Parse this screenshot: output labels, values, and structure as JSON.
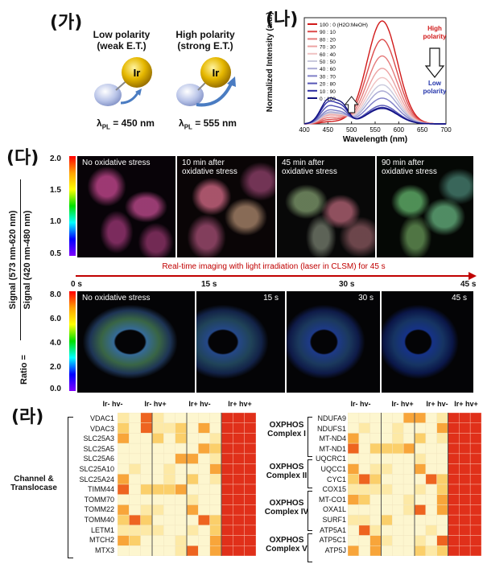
{
  "panelA": {
    "letter": "(가)",
    "low": {
      "title": "Low polarity",
      "subtitle": "(weak E.T.)",
      "lambda": "= 450 nm"
    },
    "high": {
      "title": "High polarity",
      "subtitle": "(strong E.T.)",
      "lambda": "= 555 nm"
    },
    "ir_label": "Ir",
    "lambda_symbol": "λ",
    "lambda_sub": "PL"
  },
  "panelB": {
    "letter": "(나)",
    "xlabel": "Wavelength (nm)",
    "ylabel": "Normalized Intensity (a.u.)",
    "high_label": [
      "High",
      "polarity"
    ],
    "low_label": [
      "Low",
      "polarity"
    ]
  },
  "panelC": {
    "letter": "(다)",
    "top_labels": [
      "No oxidative stress",
      "10 min after oxidative stress",
      "45 min after oxidative stress",
      "90 min after oxidative stress"
    ],
    "bottom_labels": [
      "No oxidative stress",
      "15 s",
      "30 s",
      "45 s"
    ],
    "arrow_text": "Real-time imaging with light irradiation (laser in CLSM) for 45 s",
    "time_ticks": [
      "0 s",
      "15 s",
      "30 s",
      "45 s"
    ],
    "ratio_label": "Ratio =",
    "numerator": "Signal (573 nm-620 nm)",
    "denominator": "Signal (420 nm-480 nm)",
    "top_scale": [
      "2.0",
      "1.5",
      "1.0",
      "0.5"
    ],
    "bottom_scale": [
      "8.0",
      "6.0",
      "4.0",
      "2.0",
      "0.0"
    ]
  },
  "panelD": {
    "letter": "(라)",
    "col_heads": [
      "Ir- hv-",
      "Ir- hv+",
      "Ir+ hv-",
      "Ir+ hv+"
    ],
    "left_group": "Channel & Translocase",
    "left_genes": [
      "VDAC1",
      "VDAC3",
      "SLC25A3",
      "SLC25A5",
      "SLC25A6",
      "SLC25A10",
      "SLC25A24",
      "TIMM44",
      "TOMM70",
      "TOMM22",
      "TOMM40",
      "LETM1",
      "MTCH2",
      "MTX3"
    ],
    "right_groups": [
      {
        "name": "OXPHOS Complex I",
        "genes": [
          "NDUFA9",
          "NDUFS1",
          "MT-ND4",
          "MT-ND1"
        ]
      },
      {
        "name": "OXPHOS Complex II",
        "genes": [
          "UQCRC1",
          "UQCC1",
          "CYC1"
        ]
      },
      {
        "name": "OXPHOS Complex IV",
        "genes": [
          "COX15",
          "MT-CO1",
          "OXA1L",
          "SURF1"
        ]
      },
      {
        "name": "OXPHOS Complex V",
        "genes": [
          "ATP5A1",
          "ATP5C1",
          "ATP5J"
        ]
      }
    ]
  },
  "chart_data": {
    "type": "line",
    "xlabel": "Wavelength (nm)",
    "ylabel": "Normalized Intensity (a.u.)",
    "xlim": [
      400,
      700
    ],
    "xticks": [
      400,
      450,
      500,
      550,
      600,
      650,
      700
    ],
    "legend_placement": "top-left",
    "series": [
      {
        "name": "100 : 0 (H2O:MeOH)",
        "color": "#d11a1a",
        "peak450": 0.02,
        "peak560": 1.0
      },
      {
        "name": "90 : 10",
        "color": "#dc4a4a",
        "peak450": 0.04,
        "peak560": 0.82
      },
      {
        "name": "80 : 20",
        "color": "#e57a7a",
        "peak450": 0.06,
        "peak560": 0.66
      },
      {
        "name": "70 : 30",
        "color": "#eca2a2",
        "peak450": 0.08,
        "peak560": 0.54
      },
      {
        "name": "60 : 40",
        "color": "#f0c2c2",
        "peak450": 0.09,
        "peak560": 0.45
      },
      {
        "name": "50 : 50",
        "color": "#c9c9dc",
        "peak450": 0.1,
        "peak560": 0.38
      },
      {
        "name": "40 : 60",
        "color": "#a9a9d4",
        "peak450": 0.11,
        "peak560": 0.32
      },
      {
        "name": "30 : 70",
        "color": "#7f7fc7",
        "peak450": 0.13,
        "peak560": 0.25
      },
      {
        "name": "20 : 80",
        "color": "#5555b5",
        "peak450": 0.17,
        "peak560": 0.18
      },
      {
        "name": "10 : 90",
        "color": "#2e2ea3",
        "peak450": 0.21,
        "peak560": 0.16
      },
      {
        "name": "0 : 100",
        "color": "#101080",
        "peak450": 0.24,
        "peak560": 0.15
      }
    ]
  }
}
